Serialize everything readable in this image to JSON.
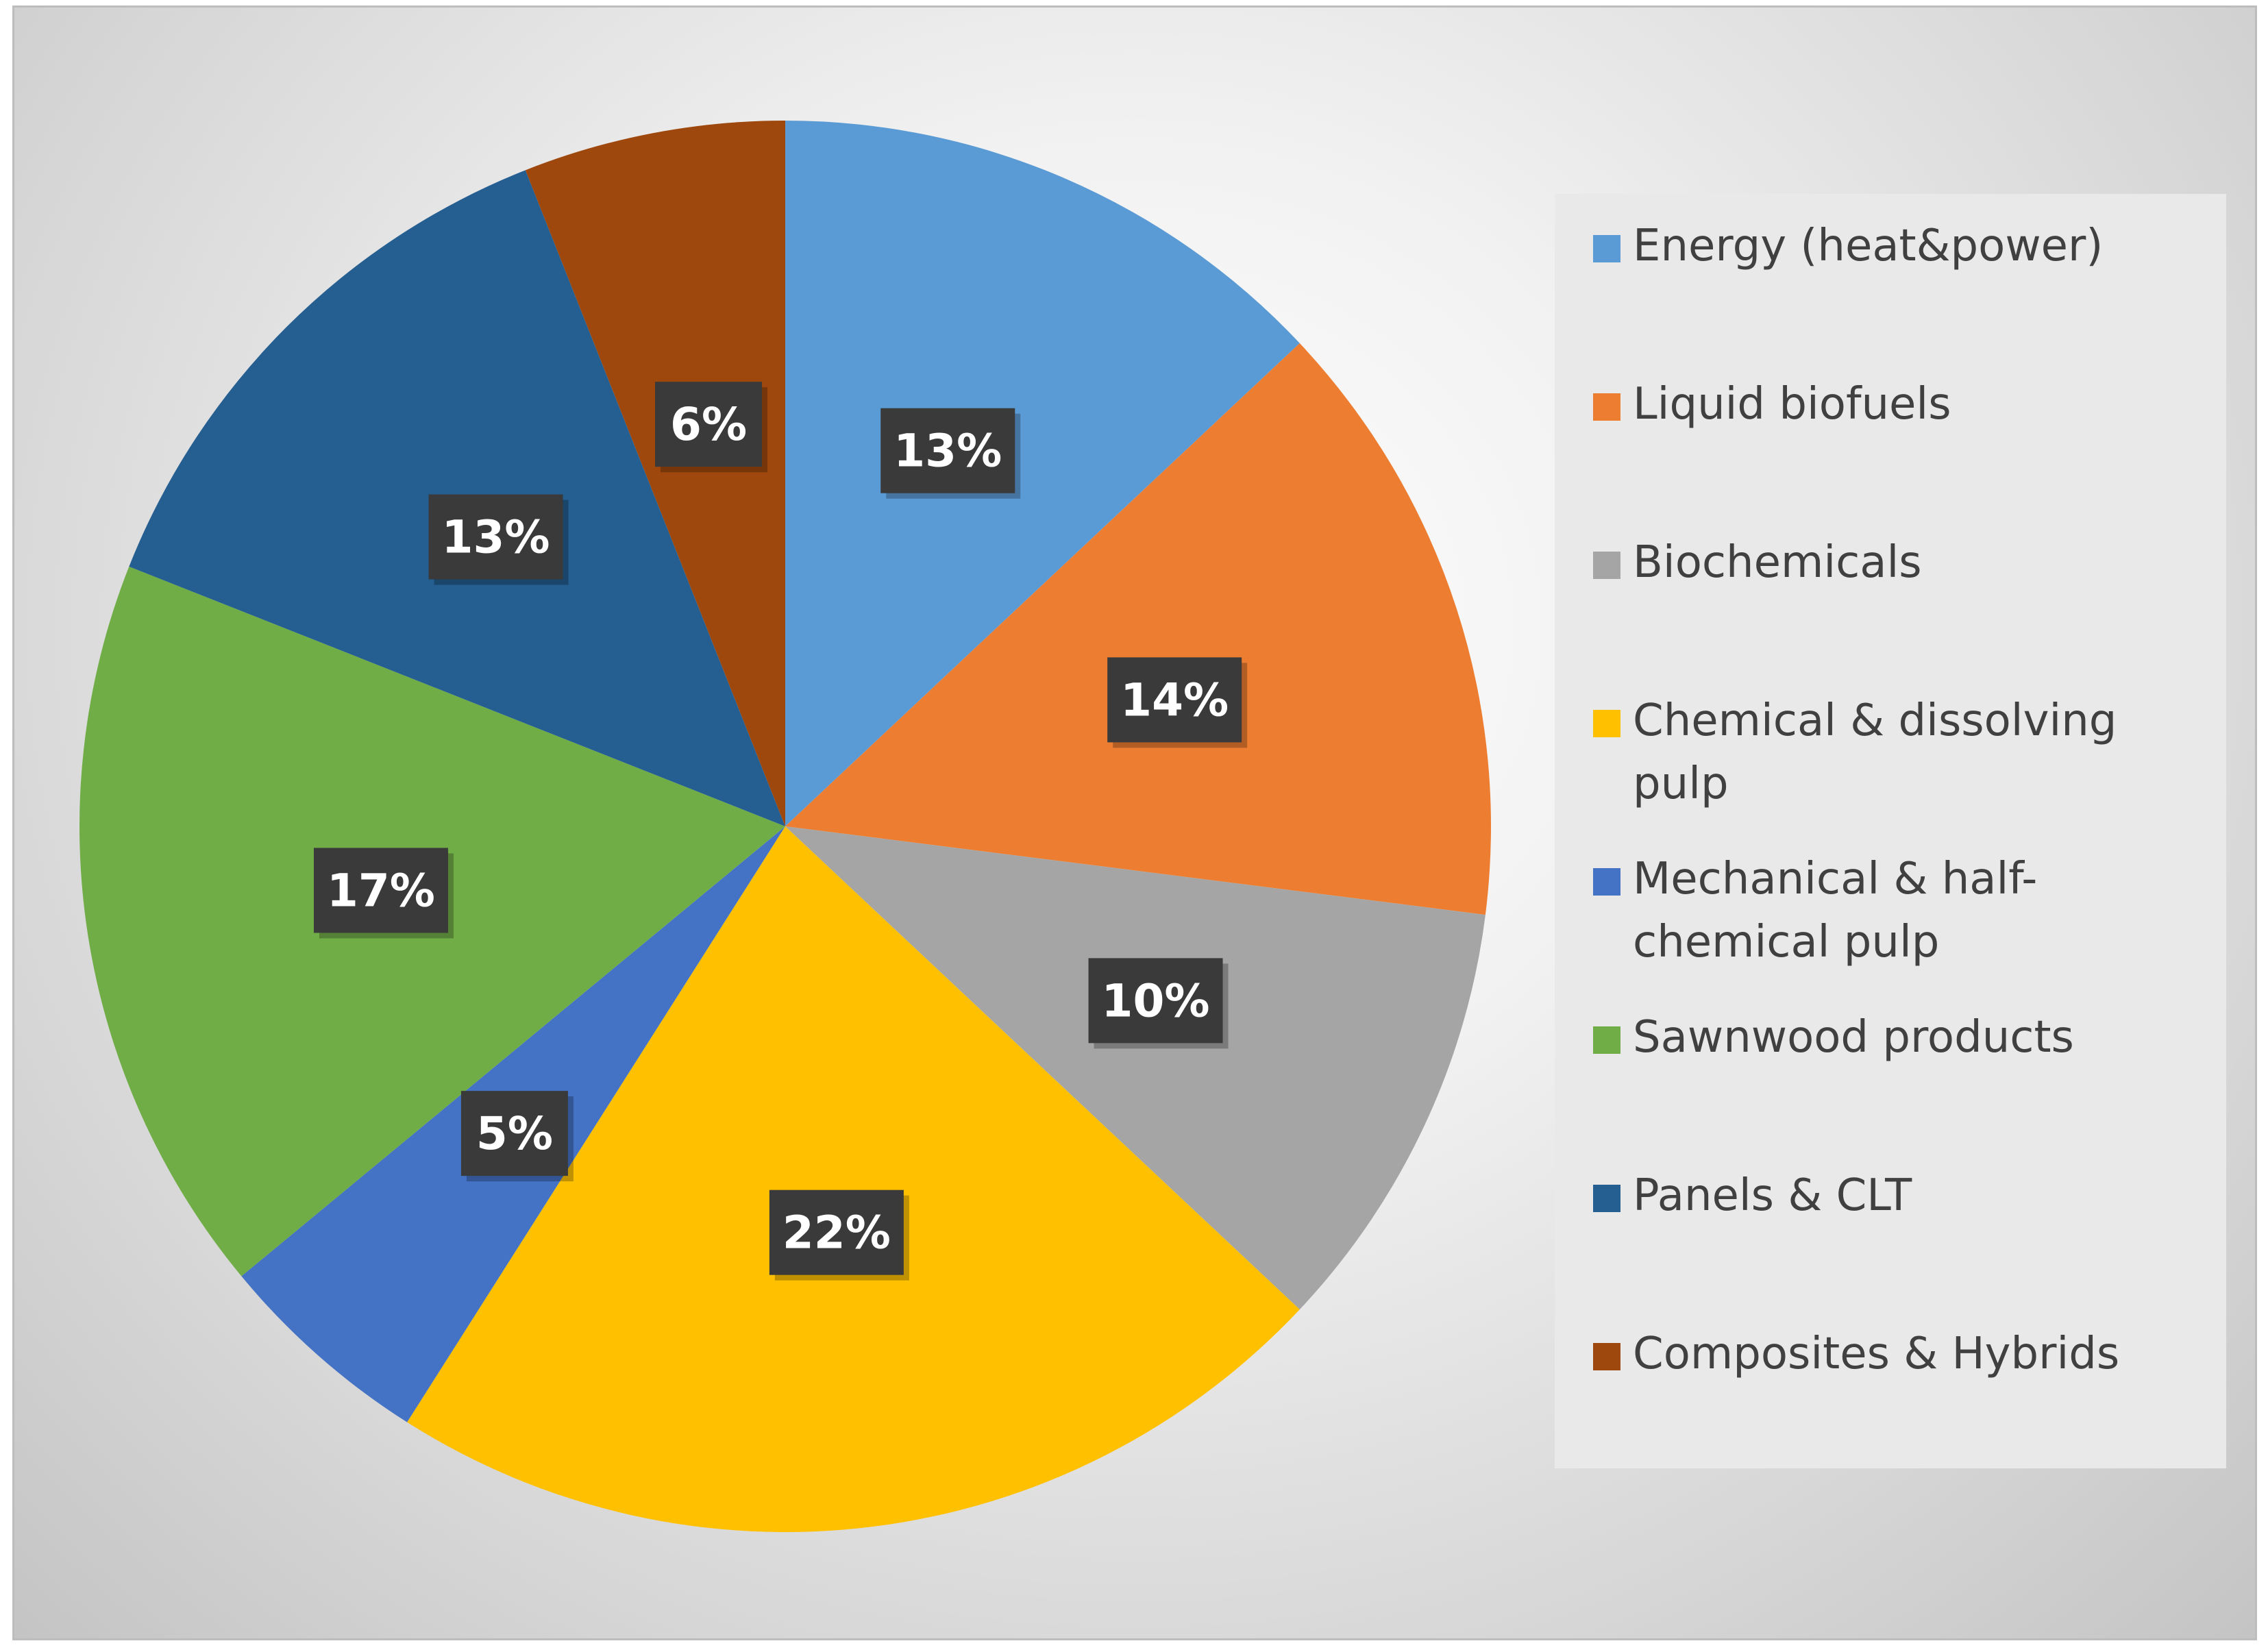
{
  "chart_data": {
    "type": "pie",
    "title": "",
    "slices": [
      {
        "label": "Energy (heat&power)",
        "value": 13,
        "display": "13%",
        "color": "#5b9bd5"
      },
      {
        "label": "Liquid biofuels",
        "value": 14,
        "display": "14%",
        "color": "#ed7d31"
      },
      {
        "label": "Biochemicals",
        "value": 10,
        "display": "10%",
        "color": "#a5a5a5"
      },
      {
        "label": "Chemical & dissolving pulp",
        "value": 22,
        "display": "22%",
        "color": "#ffc000"
      },
      {
        "label": "Mechanical & half-chemical pulp",
        "value": 5,
        "display": "5%",
        "color": "#4472c4"
      },
      {
        "label": "Sawnwood products",
        "value": 17,
        "display": "17%",
        "color": "#70ad47"
      },
      {
        "label": "Panels & CLT",
        "value": 13,
        "display": "13%",
        "color": "#255e91"
      },
      {
        "label": "Composites & Hybrids",
        "value": 6,
        "display": "6%",
        "color": "#9e480e"
      }
    ],
    "legend_position": "right",
    "start_angle": "12 o'clock",
    "direction": "clockwise"
  }
}
